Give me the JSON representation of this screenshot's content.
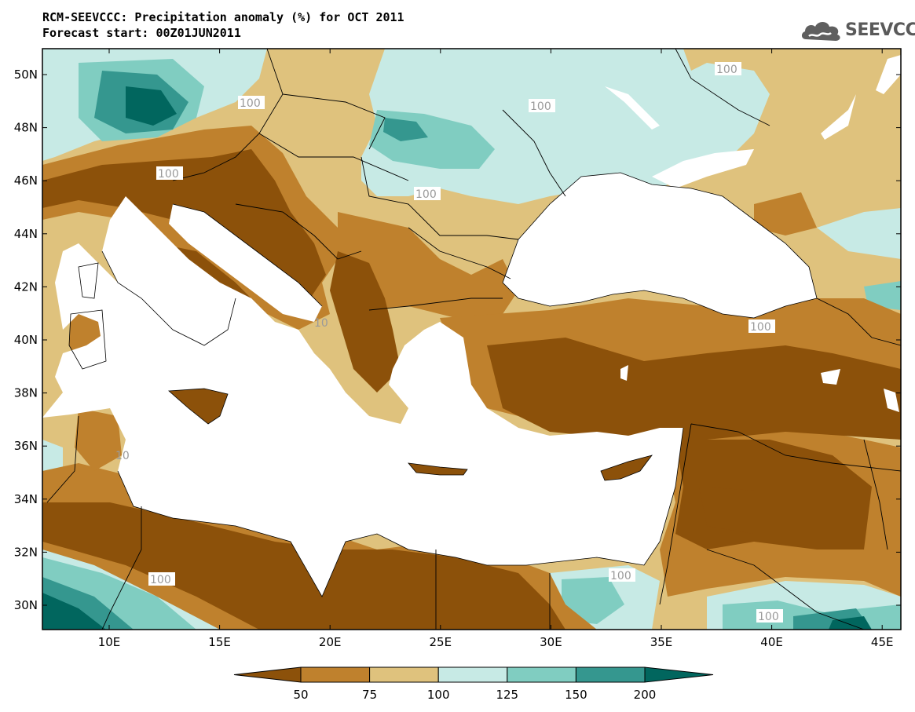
{
  "header": {
    "title_line1": "RCM-SEEVCCC: Precipitation anomaly (%) for OCT 2011",
    "title_line2": "Forecast start: 00Z01JUN2011"
  },
  "logo": {
    "text": "SEEVCCC",
    "icon": "cloud-icon"
  },
  "map": {
    "lat_labels": [
      "50N",
      "48N",
      "46N",
      "44N",
      "42N",
      "40N",
      "38N",
      "36N",
      "34N",
      "32N",
      "30N"
    ],
    "lon_labels": [
      "10E",
      "15E",
      "20E",
      "25E",
      "30E",
      "35E",
      "40E",
      "45E"
    ],
    "contour_labels": [
      "100",
      "100",
      "100",
      "100",
      "100",
      "100",
      "100",
      "100",
      "100",
      "10",
      "10",
      "100"
    ],
    "colors": {
      "below_50": "#8c510a",
      "c50_75": "#bf812d",
      "c75_100": "#dfc27d",
      "c100_125": "#c7eae5",
      "c125_150": "#80cdc1",
      "c150_200": "#35978f",
      "above_200": "#01665e",
      "sea": "#ffffff"
    }
  },
  "colorbar": {
    "ticks": [
      "50",
      "75",
      "100",
      "125",
      "150",
      "200"
    ],
    "colors": [
      "#8c510a",
      "#bf812d",
      "#dfc27d",
      "#c7eae5",
      "#80cdc1",
      "#35978f",
      "#01665e"
    ]
  }
}
